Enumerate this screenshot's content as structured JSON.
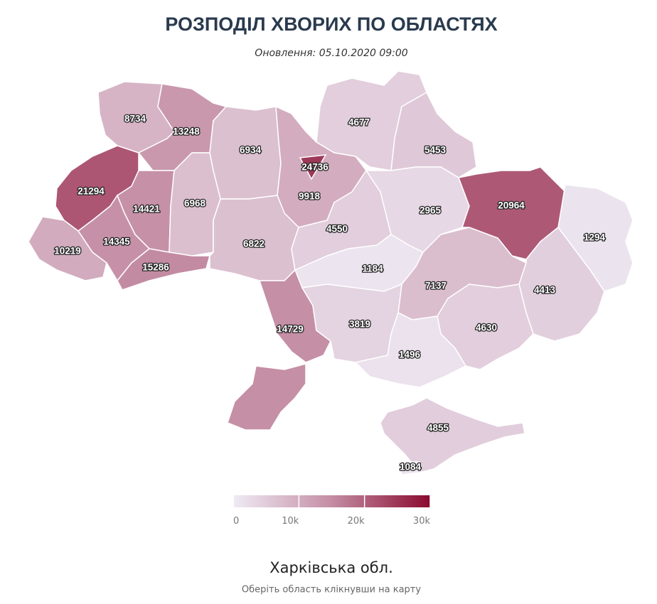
{
  "chart_data": {
    "type": "choropleth",
    "title": "РОЗПОДІЛ ХВОРИХ ПО ОБЛАСТЯХ",
    "subtitle": "Оновлення: 05.10.2020 09:00",
    "values": [
      8734,
      13248,
      6934,
      4677,
      5453,
      9918,
      24736,
      21294,
      14421,
      6968,
      14345,
      10219,
      15286,
      6822,
      4550,
      2965,
      20964,
      1294,
      1184,
      7137,
      4413,
      14729,
      3819,
      4630,
      1496,
      4855,
      1084
    ],
    "colorlim": [
      0,
      30000
    ],
    "colorticks": [
      0,
      {
        "value": 10000,
        "label": "10k"
      },
      {
        "value": 20000,
        "label": "20k"
      },
      {
        "value": 30000,
        "label": "30k"
      }
    ],
    "colorscale": [
      "#efebf5",
      "#c48da4",
      "#8a0a2f"
    ]
  },
  "selection": {
    "name": "Харківська обл.",
    "hint": "Оберіть область клікнувши на карту"
  }
}
